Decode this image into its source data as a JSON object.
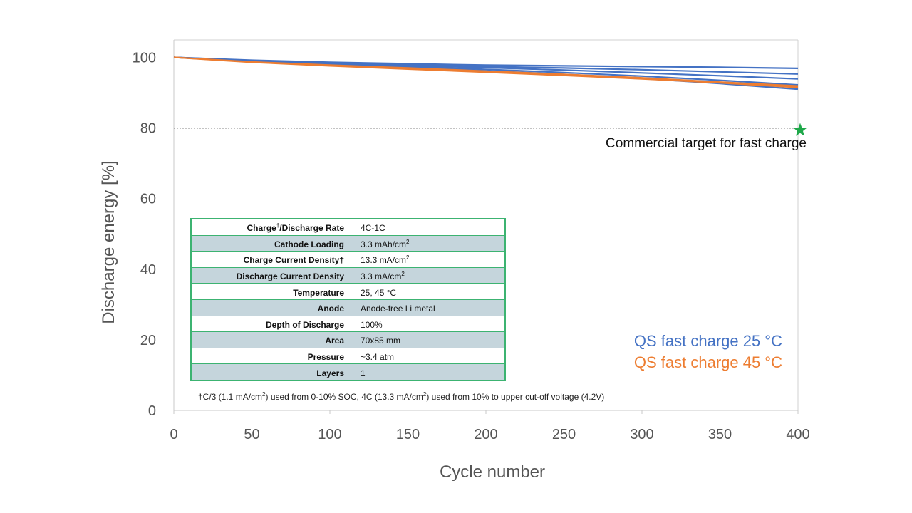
{
  "chart_data": {
    "type": "line",
    "xlabel": "Cycle number",
    "ylabel": "Discharge energy [%]",
    "xlim": [
      0,
      400
    ],
    "ylim": [
      0,
      105
    ],
    "x_ticks": [
      0,
      50,
      100,
      150,
      200,
      250,
      300,
      350,
      400
    ],
    "y_ticks": [
      0,
      20,
      40,
      60,
      80,
      100
    ],
    "grid": false,
    "reference_line": {
      "y": 80,
      "style": "dotted",
      "label": "Commercial target for fast charge",
      "marker": "star",
      "marker_x": 400,
      "marker_color": "#1fa84a"
    },
    "series": [
      {
        "name": "QS fast charge 25 °C",
        "color": "#4472c4",
        "x": [
          0,
          50,
          100,
          150,
          200,
          250,
          300,
          350,
          400
        ],
        "y": [
          100,
          99.2,
          98.6,
          98.2,
          97.8,
          97.6,
          97.4,
          97.2,
          96.9
        ]
      },
      {
        "name": "QS fast charge 25 °C",
        "color": "#4472c4",
        "x": [
          0,
          50,
          100,
          150,
          200,
          250,
          300,
          350,
          400
        ],
        "y": [
          100,
          99.1,
          98.4,
          97.9,
          97.4,
          97.0,
          96.5,
          95.9,
          95.3
        ]
      },
      {
        "name": "QS fast charge 25 °C",
        "color": "#4472c4",
        "x": [
          0,
          50,
          100,
          150,
          200,
          250,
          300,
          350,
          400
        ],
        "y": [
          100,
          99.0,
          98.3,
          97.7,
          97.1,
          96.4,
          95.6,
          94.8,
          93.9
        ]
      },
      {
        "name": "QS fast charge 25 °C",
        "color": "#4472c4",
        "x": [
          0,
          50,
          100,
          150,
          200,
          250,
          300,
          350,
          400
        ],
        "y": [
          100,
          98.9,
          98.1,
          97.4,
          96.6,
          95.7,
          94.7,
          93.5,
          92.2
        ]
      },
      {
        "name": "QS fast charge 25 °C",
        "color": "#4472c4",
        "x": [
          0,
          50,
          100,
          150,
          200,
          250,
          300,
          350,
          400
        ],
        "y": [
          100,
          98.9,
          98.0,
          97.2,
          96.2,
          95.2,
          94.0,
          92.6,
          91.0
        ]
      },
      {
        "name": "QS fast charge 45 °C",
        "color": "#ed7d31",
        "x": [
          0,
          50,
          100,
          150,
          200,
          250,
          300,
          350,
          400
        ],
        "y": [
          100,
          98.7,
          97.8,
          97.0,
          96.1,
          95.2,
          94.2,
          93.0,
          91.9
        ]
      },
      {
        "name": "QS fast charge 45 °C",
        "color": "#ed7d31",
        "x": [
          0,
          50,
          100,
          150,
          200,
          250,
          300,
          350,
          400
        ],
        "y": [
          100,
          98.6,
          97.6,
          96.7,
          95.8,
          94.9,
          93.9,
          92.8,
          91.5
        ]
      }
    ],
    "legend": {
      "position": "bottom-right",
      "entries": [
        {
          "label": "QS fast charge 25 °C",
          "color": "#4472c4"
        },
        {
          "label": "QS fast charge 45 °C",
          "color": "#ed7d31"
        }
      ]
    }
  },
  "spec_table": {
    "rows": [
      {
        "key": "Charge",
        "key_sup": "†",
        "key_rest": "/Discharge Rate",
        "value": "4C-1C",
        "value_sup": ""
      },
      {
        "key": "Cathode Loading",
        "key_sup": "",
        "key_rest": "",
        "value": "3.3 mAh/cm",
        "value_sup": "2"
      },
      {
        "key": "Charge Current Density†",
        "key_sup": "",
        "key_rest": "",
        "value": "13.3 mA/cm",
        "value_sup": "2"
      },
      {
        "key": "Discharge Current Density",
        "key_sup": "",
        "key_rest": "",
        "value": "3.3 mA/cm",
        "value_sup": "2"
      },
      {
        "key": "Temperature",
        "key_sup": "",
        "key_rest": "",
        "value": "25, 45 °C",
        "value_sup": ""
      },
      {
        "key": "Anode",
        "key_sup": "",
        "key_rest": "",
        "value": "Anode-free Li metal",
        "value_sup": ""
      },
      {
        "key": "Depth of Discharge",
        "key_sup": "",
        "key_rest": "",
        "value": "100%",
        "value_sup": ""
      },
      {
        "key": "Area",
        "key_sup": "",
        "key_rest": "",
        "value": "70x85 mm",
        "value_sup": ""
      },
      {
        "key": "Pressure",
        "key_sup": "",
        "key_rest": "",
        "value": "~3.4 atm",
        "value_sup": ""
      },
      {
        "key": "Layers",
        "key_sup": "",
        "key_rest": "",
        "value": "1",
        "value_sup": ""
      }
    ]
  },
  "footnote": {
    "p1": "†C/3 (1.1 mA/cm",
    "s1": "2",
    "p2": ") used from 0-10% SOC, 4C (13.3 mA/cm",
    "s2": "2",
    "p3": ") used from 10% to upper cut-off voltage (4.2V)"
  }
}
